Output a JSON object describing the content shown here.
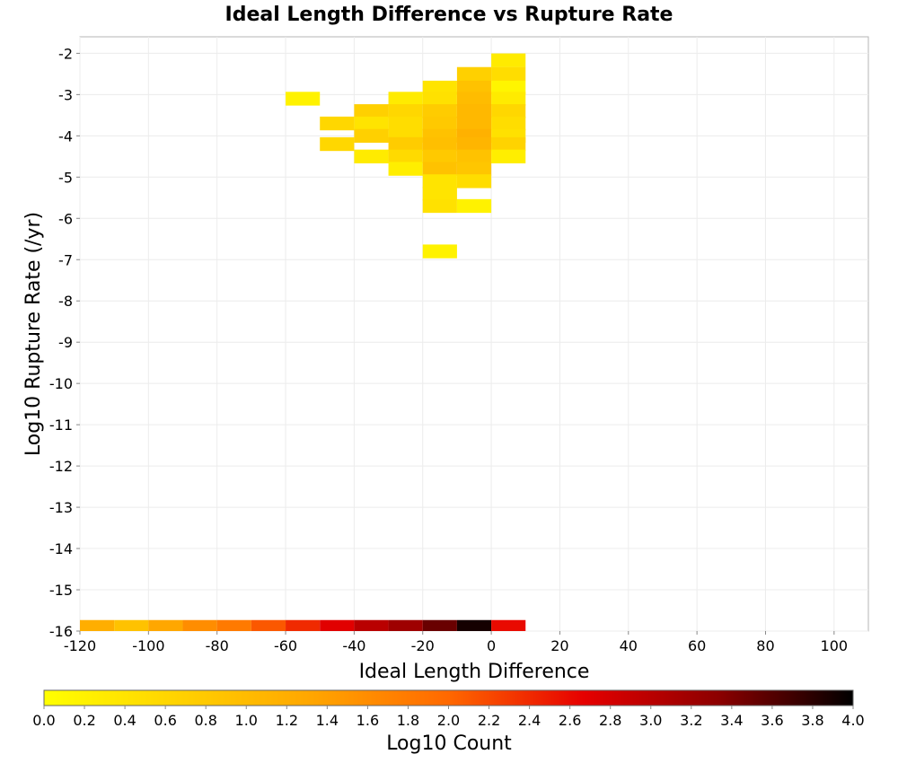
{
  "chart_data": {
    "type": "heatmap",
    "title": "Ideal Length Difference vs Rupture Rate",
    "xlabel": "Ideal Length Difference",
    "ylabel": "Log10 Rupture Rate (/yr)",
    "xlim": [
      -120,
      110
    ],
    "ylim": [
      -16,
      -1.6
    ],
    "x_ticks": [
      "-120",
      "-100",
      "-80",
      "-60",
      "-40",
      "-20",
      "0",
      "20",
      "40",
      "60",
      "80",
      "100"
    ],
    "y_ticks": [
      "-2",
      "-3",
      "-4",
      "-5",
      "-6",
      "-7",
      "-8",
      "-9",
      "-10",
      "-11",
      "-12",
      "-13",
      "-14",
      "-15",
      "-16"
    ],
    "grid": true,
    "x_bin_width": 10,
    "y_bin_height": 0.333,
    "colorbar": {
      "label": "Log10 Count",
      "range": [
        0.0,
        4.0
      ],
      "ticks": [
        "0.0",
        "0.2",
        "0.4",
        "0.6",
        "0.8",
        "1.0",
        "1.2",
        "1.4",
        "1.6",
        "1.8",
        "2.0",
        "2.2",
        "2.4",
        "2.6",
        "2.8",
        "3.0",
        "3.2",
        "3.4",
        "3.6",
        "3.8",
        "4.0"
      ],
      "colors": [
        "#ffff00",
        "#ffd200",
        "#ffa500",
        "#ff6800",
        "#e60000",
        "#8c0000",
        "#000000"
      ]
    },
    "cells": [
      {
        "x": 0,
        "y": -2.17,
        "v": 0.3
      },
      {
        "x": 0,
        "y": -2.5,
        "v": 0.5
      },
      {
        "x": -10,
        "y": -2.5,
        "v": 0.7
      },
      {
        "x": -20,
        "y": -2.83,
        "v": 0.4
      },
      {
        "x": -10,
        "y": -2.83,
        "v": 0.9
      },
      {
        "x": 0,
        "y": -2.83,
        "v": 0.15
      },
      {
        "x": -60,
        "y": -3.1,
        "v": 0.2
      },
      {
        "x": -30,
        "y": -3.1,
        "v": 0.3
      },
      {
        "x": -20,
        "y": -3.1,
        "v": 0.45
      },
      {
        "x": -10,
        "y": -3.1,
        "v": 1.0
      },
      {
        "x": 0,
        "y": -3.1,
        "v": 0.3
      },
      {
        "x": -40,
        "y": -3.4,
        "v": 0.7
      },
      {
        "x": -30,
        "y": -3.4,
        "v": 0.6
      },
      {
        "x": -20,
        "y": -3.4,
        "v": 0.75
      },
      {
        "x": -10,
        "y": -3.4,
        "v": 1.05
      },
      {
        "x": 0,
        "y": -3.4,
        "v": 0.6
      },
      {
        "x": -50,
        "y": -3.7,
        "v": 0.6
      },
      {
        "x": -40,
        "y": -3.7,
        "v": 0.4
      },
      {
        "x": -30,
        "y": -3.7,
        "v": 0.5
      },
      {
        "x": -20,
        "y": -3.7,
        "v": 0.8
      },
      {
        "x": -10,
        "y": -3.7,
        "v": 1.05
      },
      {
        "x": 0,
        "y": -3.7,
        "v": 0.5
      },
      {
        "x": -40,
        "y": -4.0,
        "v": 0.7
      },
      {
        "x": -30,
        "y": -4.0,
        "v": 0.5
      },
      {
        "x": -20,
        "y": -4.0,
        "v": 0.9
      },
      {
        "x": -10,
        "y": -4.0,
        "v": 1.15
      },
      {
        "x": 0,
        "y": -4.0,
        "v": 0.45
      },
      {
        "x": -50,
        "y": -4.2,
        "v": 0.6
      },
      {
        "x": -30,
        "y": -4.2,
        "v": 0.75
      },
      {
        "x": -20,
        "y": -4.2,
        "v": 0.95
      },
      {
        "x": -10,
        "y": -4.2,
        "v": 1.1
      },
      {
        "x": 0,
        "y": -4.2,
        "v": 0.65
      },
      {
        "x": -40,
        "y": -4.5,
        "v": 0.3
      },
      {
        "x": -30,
        "y": -4.5,
        "v": 0.55
      },
      {
        "x": -20,
        "y": -4.5,
        "v": 0.8
      },
      {
        "x": -10,
        "y": -4.5,
        "v": 0.9
      },
      {
        "x": 0,
        "y": -4.5,
        "v": 0.25
      },
      {
        "x": -30,
        "y": -4.8,
        "v": 0.25
      },
      {
        "x": -20,
        "y": -4.8,
        "v": 0.9
      },
      {
        "x": -10,
        "y": -4.8,
        "v": 0.85
      },
      {
        "x": -20,
        "y": -5.1,
        "v": 0.4
      },
      {
        "x": -10,
        "y": -5.1,
        "v": 0.5
      },
      {
        "x": -20,
        "y": -5.4,
        "v": 0.4
      },
      {
        "x": -20,
        "y": -5.7,
        "v": 0.45
      },
      {
        "x": -10,
        "y": -5.7,
        "v": 0.2
      },
      {
        "x": -20,
        "y": -6.8,
        "v": 0.2
      },
      {
        "x": -120,
        "y": -15.9,
        "v": 1.2
      },
      {
        "x": -110,
        "y": -15.9,
        "v": 0.9
      },
      {
        "x": -100,
        "y": -15.9,
        "v": 1.3
      },
      {
        "x": -90,
        "y": -15.9,
        "v": 1.6
      },
      {
        "x": -80,
        "y": -15.9,
        "v": 1.8
      },
      {
        "x": -70,
        "y": -15.9,
        "v": 2.1
      },
      {
        "x": -60,
        "y": -15.9,
        "v": 2.4
      },
      {
        "x": -50,
        "y": -15.9,
        "v": 2.7
      },
      {
        "x": -40,
        "y": -15.9,
        "v": 3.0
      },
      {
        "x": -30,
        "y": -15.9,
        "v": 3.2
      },
      {
        "x": -20,
        "y": -15.9,
        "v": 3.5
      },
      {
        "x": -10,
        "y": -15.9,
        "v": 3.9
      },
      {
        "x": 0,
        "y": -15.9,
        "v": 2.6
      }
    ]
  }
}
